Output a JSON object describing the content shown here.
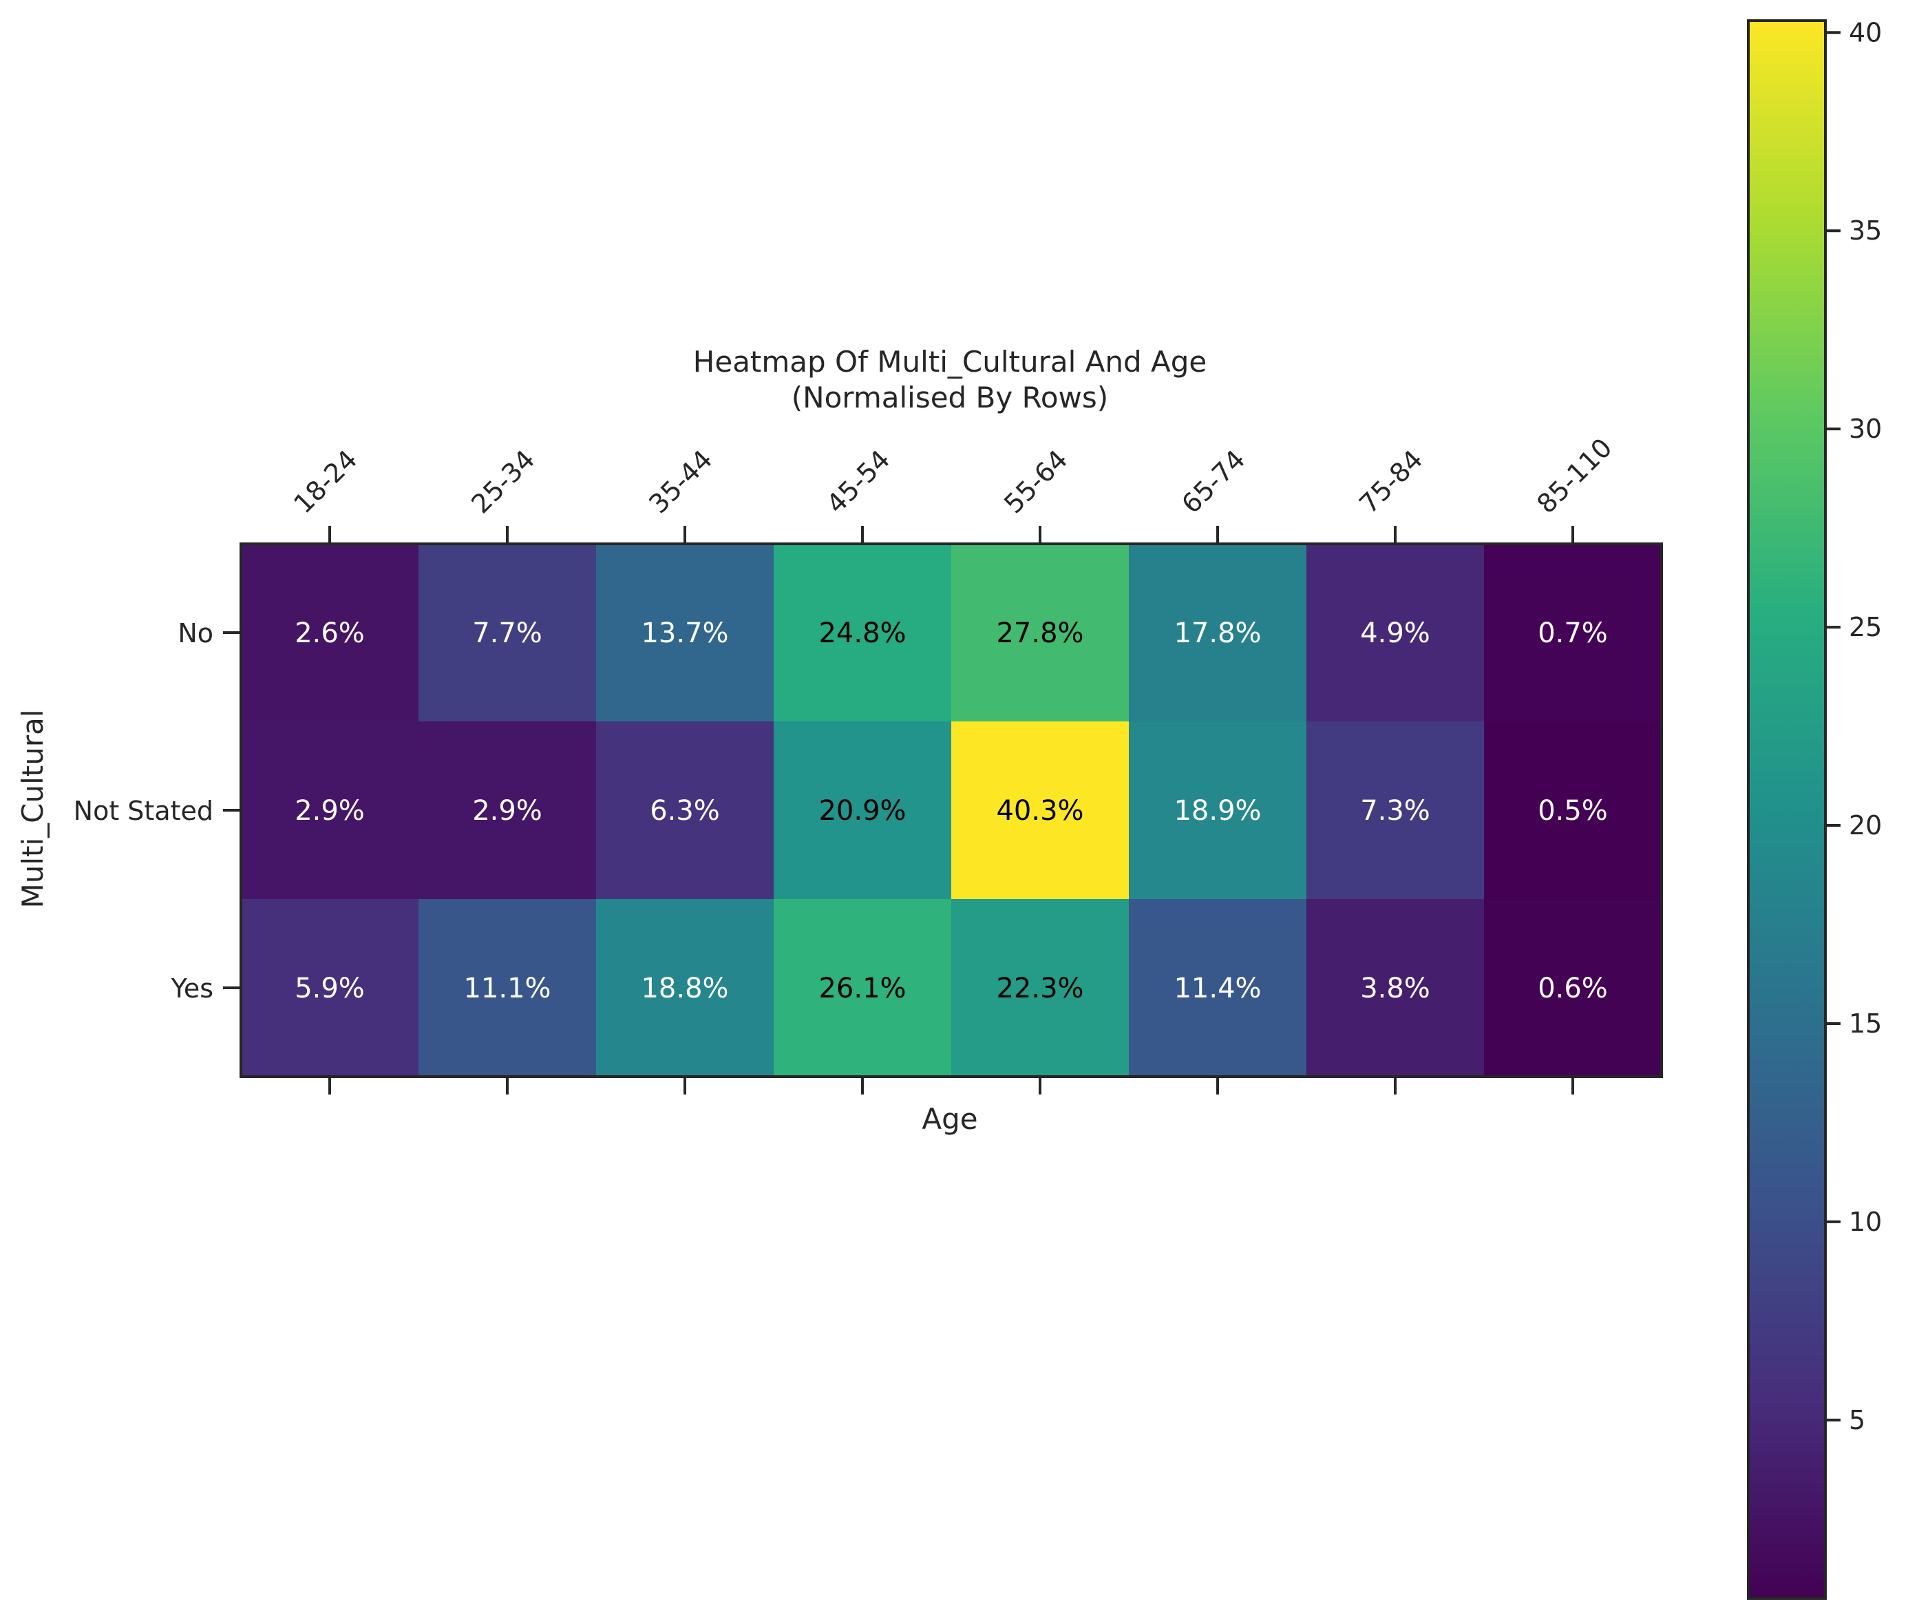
{
  "chart_data": {
    "type": "heatmap",
    "title": "Heatmap Of Multi_Cultural And Age",
    "subtitle": "(Normalised By Rows)",
    "xlabel": "Age",
    "ylabel": "Multi_Cultural",
    "x_categories": [
      "18-24",
      "25-34",
      "35-44",
      "45-54",
      "55-64",
      "65-74",
      "75-84",
      "85-110"
    ],
    "y_categories": [
      "No",
      "Not Stated",
      "Yes"
    ],
    "values": [
      [
        2.6,
        7.7,
        13.7,
        24.8,
        27.8,
        17.8,
        4.9,
        0.7
      ],
      [
        2.9,
        2.9,
        6.3,
        20.9,
        40.3,
        18.9,
        7.3,
        0.5
      ],
      [
        5.9,
        11.1,
        18.8,
        26.1,
        22.3,
        11.4,
        3.8,
        0.6
      ]
    ],
    "cell_labels": [
      [
        "2.6%",
        "7.7%",
        "13.7%",
        "24.8%",
        "27.8%",
        "17.8%",
        "4.9%",
        "0.7%"
      ],
      [
        "2.9%",
        "2.9%",
        "6.3%",
        "20.9%",
        "40.3%",
        "18.9%",
        "7.3%",
        "0.5%"
      ],
      [
        "5.9%",
        "11.1%",
        "18.8%",
        "26.1%",
        "22.3%",
        "11.4%",
        "3.8%",
        "0.6%"
      ]
    ],
    "colormap": "viridis",
    "color_range": [
      0.5,
      40.3
    ],
    "colorbar_ticks": [
      5,
      10,
      15,
      20,
      25,
      30,
      35,
      40
    ],
    "colorbar_tick_labels": [
      "5",
      "10",
      "15",
      "20",
      "25",
      "30",
      "35",
      "40"
    ],
    "x_tick_position": "top-and-bottom",
    "x_tick_labels_position": "top",
    "colorbar_position": "right"
  }
}
